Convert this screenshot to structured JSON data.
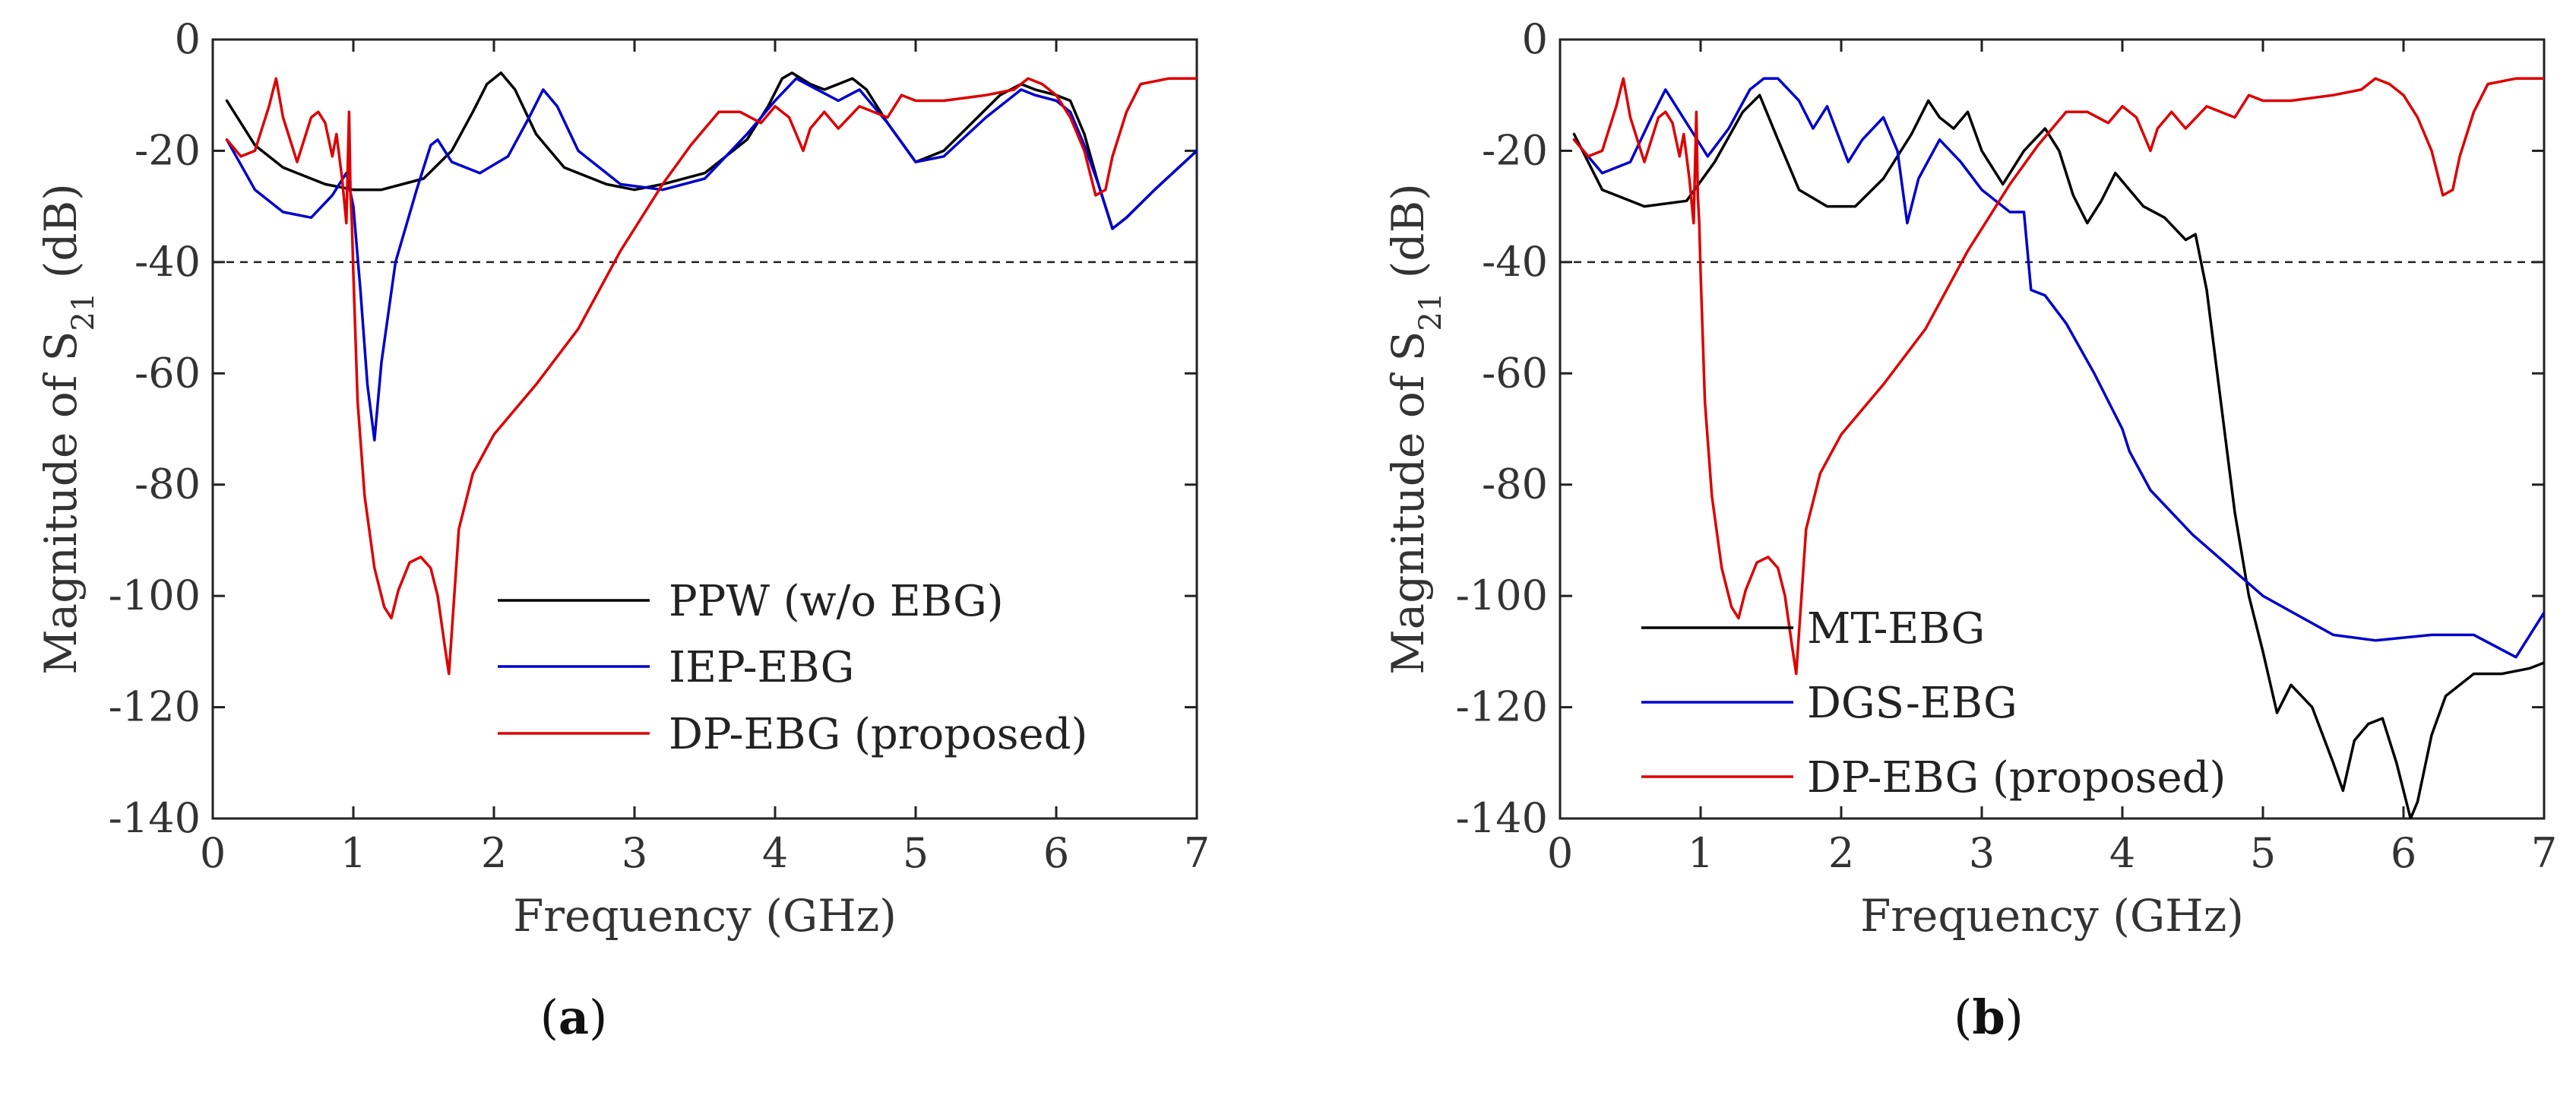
{
  "chart_data": [
    {
      "type": "line",
      "panel": "(a)",
      "panel_letter": "a",
      "xlabel": "Frequency (GHz)",
      "ylabel": "Magnitude of S21 (dB)",
      "xlim": [
        0,
        7
      ],
      "ylim": [
        -140,
        0
      ],
      "xticks": [
        0,
        1,
        2,
        3,
        4,
        5,
        6,
        7
      ],
      "yticks": [
        0,
        -20,
        -40,
        -60,
        -80,
        -100,
        -120,
        -140
      ],
      "reference_line": {
        "y": -40,
        "style": "dashed"
      },
      "legend_position": "lower-right",
      "series": [
        {
          "name": "PPW (w/o EBG)",
          "color": "#000000",
          "x": [
            0.1,
            0.3,
            0.5,
            0.8,
            1.0,
            1.2,
            1.5,
            1.7,
            1.85,
            1.95,
            2.05,
            2.15,
            2.3,
            2.5,
            2.8,
            3.0,
            3.2,
            3.5,
            3.8,
            3.95,
            4.05,
            4.12,
            4.25,
            4.35,
            4.45,
            4.55,
            4.65,
            4.8,
            5.0,
            5.2,
            5.4,
            5.6,
            5.75,
            5.85,
            6.0,
            6.1,
            6.2,
            6.3,
            6.4,
            6.5,
            6.7,
            7.0
          ],
          "y": [
            -11,
            -19,
            -23,
            -26,
            -27,
            -27,
            -25,
            -20,
            -13,
            -8,
            -6,
            -9,
            -17,
            -23,
            -26,
            -27,
            -26,
            -24,
            -18,
            -12,
            -7,
            -6,
            -8,
            -9,
            -8,
            -7,
            -9,
            -15,
            -22,
            -20,
            -15,
            -10,
            -8,
            -9,
            -10,
            -11,
            -17,
            -26,
            -34,
            -32,
            -27,
            -20
          ]
        },
        {
          "name": "IEP-EBG",
          "color": "#0000cc",
          "x": [
            0.1,
            0.3,
            0.5,
            0.7,
            0.85,
            0.95,
            1.0,
            1.05,
            1.1,
            1.15,
            1.2,
            1.3,
            1.45,
            1.55,
            1.6,
            1.7,
            1.9,
            2.1,
            2.25,
            2.35,
            2.45,
            2.6,
            2.9,
            3.2,
            3.5,
            3.8,
            4.0,
            4.15,
            4.3,
            4.45,
            4.6,
            4.8,
            5.0,
            5.2,
            5.5,
            5.75,
            5.85,
            6.0,
            6.1,
            6.2,
            6.3,
            6.4,
            6.5,
            6.7,
            7.0
          ],
          "y": [
            -18,
            -27,
            -31,
            -32,
            -28,
            -24,
            -30,
            -45,
            -62,
            -72,
            -58,
            -40,
            -27,
            -19,
            -18,
            -22,
            -24,
            -21,
            -14,
            -9,
            -12,
            -20,
            -26,
            -27,
            -25,
            -17,
            -11,
            -7,
            -9,
            -11,
            -9,
            -15,
            -22,
            -21,
            -14,
            -9,
            -10,
            -11,
            -13,
            -19,
            -26,
            -34,
            -32,
            -27,
            -20
          ]
        },
        {
          "name": "DP-EBG (proposed)",
          "color": "#dd0000",
          "x": [
            0.1,
            0.2,
            0.3,
            0.4,
            0.45,
            0.5,
            0.6,
            0.7,
            0.75,
            0.8,
            0.85,
            0.88,
            0.92,
            0.95,
            0.97,
            0.98,
            0.99,
            1.0,
            1.03,
            1.08,
            1.15,
            1.22,
            1.27,
            1.32,
            1.4,
            1.48,
            1.55,
            1.6,
            1.65,
            1.68,
            1.71,
            1.75,
            1.85,
            2.0,
            2.3,
            2.6,
            2.9,
            3.2,
            3.4,
            3.6,
            3.75,
            3.9,
            4.0,
            4.1,
            4.15,
            4.2,
            4.25,
            4.35,
            4.45,
            4.6,
            4.7,
            4.8,
            4.9,
            5.0,
            5.2,
            5.5,
            5.7,
            5.8,
            5.9,
            6.0,
            6.1,
            6.2,
            6.28,
            6.35,
            6.4,
            6.5,
            6.6,
            6.8,
            7.0
          ],
          "y": [
            -18,
            -21,
            -20,
            -12,
            -7,
            -14,
            -22,
            -14,
            -13,
            -15,
            -21,
            -17,
            -25,
            -33,
            -13,
            -28,
            -33,
            -42,
            -65,
            -82,
            -95,
            -102,
            -104,
            -99,
            -94,
            -93,
            -95,
            -100,
            -109,
            -114,
            -103,
            -88,
            -78,
            -71,
            -62,
            -52,
            -38,
            -26,
            -19,
            -13,
            -13,
            -15,
            -12,
            -14,
            -17,
            -20,
            -16,
            -13,
            -16,
            -12,
            -13,
            -14,
            -10,
            -11,
            -11,
            -10,
            -9,
            -7,
            -8,
            -10,
            -14,
            -20,
            -28,
            -27,
            -21,
            -13,
            -8,
            -7,
            -7
          ]
        }
      ]
    },
    {
      "type": "line",
      "panel": "(b)",
      "panel_letter": "b",
      "xlabel": "Frequency (GHz)",
      "ylabel": "Magnitude of S21 (dB)",
      "xlim": [
        0,
        7
      ],
      "ylim": [
        -140,
        0
      ],
      "xticks": [
        0,
        1,
        2,
        3,
        4,
        5,
        6,
        7
      ],
      "yticks": [
        0,
        -20,
        -40,
        -60,
        -80,
        -100,
        -120,
        -140
      ],
      "reference_line": {
        "y": -40,
        "style": "dashed"
      },
      "legend_position": "lower-left",
      "series": [
        {
          "name": "MT-EBG",
          "color": "#000000",
          "x": [
            0.1,
            0.3,
            0.6,
            0.9,
            1.1,
            1.3,
            1.42,
            1.55,
            1.7,
            1.9,
            2.1,
            2.3,
            2.5,
            2.62,
            2.7,
            2.8,
            2.9,
            3.0,
            3.15,
            3.3,
            3.45,
            3.55,
            3.65,
            3.75,
            3.85,
            3.95,
            4.05,
            4.15,
            4.3,
            4.45,
            4.52,
            4.6,
            4.7,
            4.8,
            4.9,
            5.0,
            5.1,
            5.2,
            5.35,
            5.5,
            5.57,
            5.65,
            5.75,
            5.85,
            5.95,
            6.05,
            6.1,
            6.2,
            6.3,
            6.5,
            6.7,
            6.9,
            7.0
          ],
          "y": [
            -17,
            -27,
            -30,
            -29,
            -22,
            -13,
            -10,
            -18,
            -27,
            -30,
            -30,
            -25,
            -17,
            -11,
            -14,
            -16,
            -13,
            -20,
            -26,
            -20,
            -16,
            -20,
            -28,
            -33,
            -29,
            -24,
            -27,
            -30,
            -32,
            -36,
            -35,
            -45,
            -65,
            -85,
            -100,
            -110,
            -121,
            -116,
            -120,
            -130,
            -135,
            -126,
            -123,
            -122,
            -130,
            -140,
            -137,
            -125,
            -118,
            -114,
            -114,
            -113,
            -112
          ]
        },
        {
          "name": "DGS-EBG",
          "color": "#0000cc",
          "x": [
            0.1,
            0.3,
            0.5,
            0.65,
            0.75,
            0.85,
            0.95,
            1.05,
            1.2,
            1.35,
            1.45,
            1.55,
            1.7,
            1.8,
            1.9,
            2.05,
            2.15,
            2.3,
            2.4,
            2.47,
            2.55,
            2.7,
            2.85,
            3.0,
            3.2,
            3.3,
            3.35,
            3.45,
            3.6,
            3.8,
            4.0,
            4.05,
            4.2,
            4.5,
            5.0,
            5.5,
            5.8,
            6.2,
            6.5,
            6.8,
            7.0
          ],
          "y": [
            -18,
            -24,
            -22,
            -14,
            -9,
            -13,
            -17,
            -21,
            -16,
            -9,
            -7,
            -7,
            -11,
            -16,
            -12,
            -22,
            -18,
            -14,
            -20,
            -33,
            -25,
            -18,
            -22,
            -27,
            -31,
            -31,
            -45,
            -46,
            -51,
            -60,
            -70,
            -74,
            -81,
            -89,
            -100,
            -107,
            -108,
            -107,
            -107,
            -111,
            -103
          ]
        },
        {
          "name": "DP-EBG (proposed)",
          "color": "#dd0000",
          "x": [
            0.1,
            0.2,
            0.3,
            0.4,
            0.45,
            0.5,
            0.6,
            0.7,
            0.75,
            0.8,
            0.85,
            0.88,
            0.92,
            0.95,
            0.97,
            0.98,
            0.99,
            1.0,
            1.03,
            1.08,
            1.15,
            1.22,
            1.27,
            1.32,
            1.4,
            1.48,
            1.55,
            1.6,
            1.65,
            1.68,
            1.71,
            1.75,
            1.85,
            2.0,
            2.3,
            2.6,
            2.9,
            3.2,
            3.4,
            3.6,
            3.75,
            3.9,
            4.0,
            4.1,
            4.15,
            4.2,
            4.25,
            4.35,
            4.45,
            4.6,
            4.7,
            4.8,
            4.9,
            5.0,
            5.2,
            5.5,
            5.7,
            5.8,
            5.9,
            6.0,
            6.1,
            6.2,
            6.28,
            6.35,
            6.4,
            6.5,
            6.6,
            6.8,
            7.0
          ],
          "y": [
            -18,
            -21,
            -20,
            -12,
            -7,
            -14,
            -22,
            -14,
            -13,
            -15,
            -21,
            -17,
            -25,
            -33,
            -13,
            -28,
            -33,
            -42,
            -65,
            -82,
            -95,
            -102,
            -104,
            -99,
            -94,
            -93,
            -95,
            -100,
            -109,
            -114,
            -103,
            -88,
            -78,
            -71,
            -62,
            -52,
            -38,
            -26,
            -19,
            -13,
            -13,
            -15,
            -12,
            -14,
            -17,
            -20,
            -16,
            -13,
            -16,
            -12,
            -13,
            -14,
            -10,
            -11,
            -11,
            -10,
            -9,
            -7,
            -8,
            -10,
            -14,
            -20,
            -28,
            -27,
            -21,
            -13,
            -8,
            -7,
            -7
          ]
        }
      ]
    }
  ]
}
